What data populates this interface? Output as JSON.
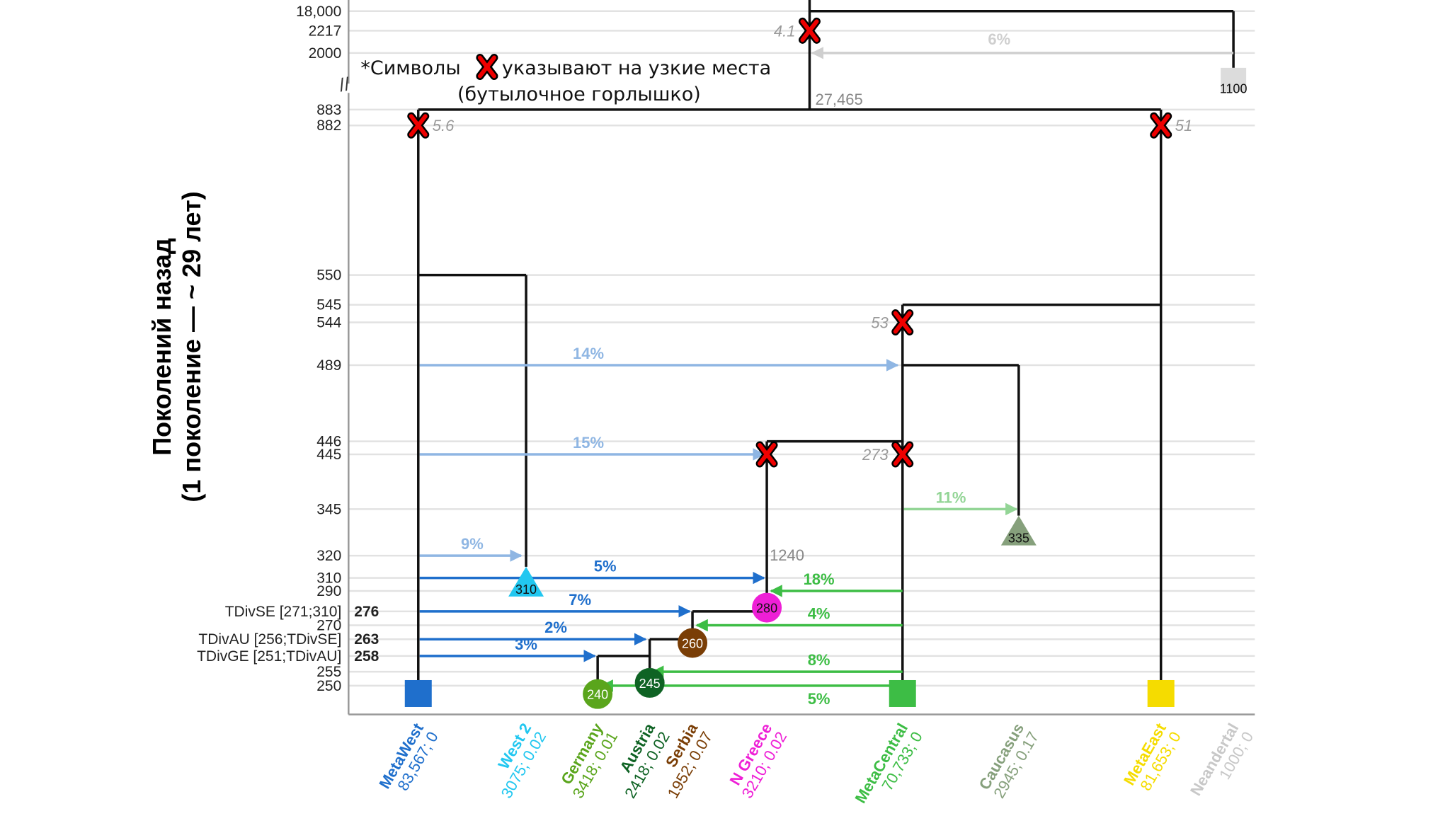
{
  "chart_data": {
    "type": "tree",
    "title": "",
    "note": {
      "line1_prefix": "*Символы",
      "line1_suffix": "указывают на узкие места",
      "line2": "(бутылочное горлышко)",
      "icon": "bottleneck-x-icon"
    },
    "ylabel_line1": "Поколений назад",
    "ylabel_line2": "(1 поколение — ~ 29 лет)",
    "y_ticks": [
      {
        "label": "18,000",
        "value": 18000
      },
      {
        "label": "2217",
        "value": 2217
      },
      {
        "label": "2000",
        "value": 2000
      },
      {
        "label": "883",
        "value": 883
      },
      {
        "label": "882",
        "value": 882
      },
      {
        "label": "550",
        "value": 550
      },
      {
        "label": "545",
        "value": 545
      },
      {
        "label": "544",
        "value": 544
      },
      {
        "label": "489",
        "value": 489
      },
      {
        "label": "446",
        "value": 446
      },
      {
        "label": "445",
        "value": 445
      },
      {
        "label": "345",
        "value": 345
      },
      {
        "label": "320",
        "value": 320
      },
      {
        "label": "310",
        "value": 310
      },
      {
        "label": "290",
        "value": 290
      },
      {
        "label": "270",
        "value": 270
      },
      {
        "label": "255",
        "value": 255
      },
      {
        "label": "250",
        "value": 250
      }
    ],
    "inferred_ticks": [
      {
        "label": "TDivSE [271;310]",
        "value_label": "276",
        "value": 276
      },
      {
        "label": "TDivAU [256;TDivSE]",
        "value_label": "263",
        "value": 263
      },
      {
        "label": "TDivGE [251;TDivAU]",
        "value_label": "258",
        "value": 258
      }
    ],
    "axis_break": "//",
    "populations": [
      {
        "id": "metawest",
        "name": "MetaWest",
        "stats": "83,567; 0",
        "color": "#1f6fcc",
        "shape": "square",
        "node_label": ""
      },
      {
        "id": "west2",
        "name": "West 2",
        "stats": "3075; 0.02",
        "color": "#22c7f0",
        "shape": "triangle",
        "node_label": "310"
      },
      {
        "id": "germany",
        "name": "Germany",
        "stats": "3418; 0.01",
        "color": "#5aa51c",
        "shape": "circle",
        "node_label": "240"
      },
      {
        "id": "austria",
        "name": "Austria",
        "stats": "2418; 0.02",
        "color": "#0f6324",
        "shape": "circle",
        "node_label": "245"
      },
      {
        "id": "serbia",
        "name": "Serbia",
        "stats": "1952; 0.07",
        "color": "#7a3e06",
        "shape": "circle",
        "node_label": "260"
      },
      {
        "id": "ngreece",
        "name": "N Greece",
        "stats": "3210; 0.02",
        "color": "#ee1fd6",
        "shape": "circle",
        "node_label": "280"
      },
      {
        "id": "metacentral",
        "name": "MetaCentral",
        "stats": "70,733; 0",
        "color": "#3dbd45",
        "shape": "square",
        "node_label": ""
      },
      {
        "id": "caucasus",
        "name": "Caucasus",
        "stats": "2945; 0.17",
        "color": "#86a07c",
        "shape": "triangle",
        "node_label": "335"
      },
      {
        "id": "metaeast",
        "name": "MetaEast",
        "stats": "81,653; 0",
        "color": "#f5dc00",
        "shape": "square",
        "node_label": ""
      },
      {
        "id": "neandertal",
        "name": "Neandertal",
        "stats": "1000; 0",
        "color": "#c8c8c8",
        "shape": "square",
        "node_label": "1100"
      }
    ],
    "bottlenecks": [
      {
        "at": "root",
        "value_label": "4.1",
        "time": 2217
      },
      {
        "at": "metawest-branch",
        "value_label": "5.6",
        "time": 882
      },
      {
        "at": "metaeast-branch",
        "value_label": "51",
        "time": 882
      },
      {
        "at": "metacentral-branch",
        "value_label": "53",
        "time": 544
      },
      {
        "at": "ngreece-branch",
        "value_label": "",
        "time": 445
      },
      {
        "at": "metacentral-445",
        "value_label": "273",
        "time": 445
      }
    ],
    "branch_labels": [
      {
        "label": "27,465",
        "time": 883
      },
      {
        "label": "1240",
        "time": 320
      }
    ],
    "admixtures": [
      {
        "from": "neandertal",
        "to": "root",
        "percent": "6%",
        "time": 2000,
        "color": "#cfcfcf"
      },
      {
        "from": "metawest",
        "to": "metacentral",
        "percent": "14%",
        "time": 489,
        "color": "#8fb6e3"
      },
      {
        "from": "metawest",
        "to": "ngreece",
        "percent": "15%",
        "time": 445,
        "color": "#8fb6e3"
      },
      {
        "from": "metacentral",
        "to": "caucasus",
        "percent": "11%",
        "time": 345,
        "color": "#93d596"
      },
      {
        "from": "metawest",
        "to": "west2",
        "percent": "9%",
        "time": 320,
        "color": "#8fb6e3"
      },
      {
        "from": "metawest",
        "to": "ngreece",
        "percent": "5%",
        "time": 310,
        "color": "#1f6fcc"
      },
      {
        "from": "metacentral",
        "to": "ngreece",
        "percent": "18%",
        "time": 290,
        "color": "#3dbd45"
      },
      {
        "from": "metawest",
        "to": "serbia",
        "percent": "7%",
        "time": 276,
        "color": "#1f6fcc"
      },
      {
        "from": "metacentral",
        "to": "serbia",
        "percent": "4%",
        "time": 270,
        "color": "#3dbd45"
      },
      {
        "from": "metawest",
        "to": "austria",
        "percent": "2%",
        "time": 263,
        "color": "#1f6fcc"
      },
      {
        "from": "metawest",
        "to": "germany",
        "percent": "3%",
        "time": 258,
        "color": "#1f6fcc"
      },
      {
        "from": "metacentral",
        "to": "austria",
        "percent": "8%",
        "time": 255,
        "color": "#3dbd45"
      },
      {
        "from": "metacentral",
        "to": "germany",
        "percent": "5%",
        "time": 250,
        "color": "#3dbd45"
      }
    ]
  }
}
